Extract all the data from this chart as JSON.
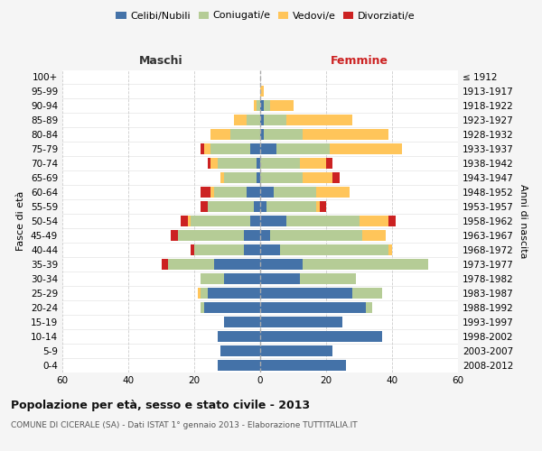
{
  "age_groups": [
    "100+",
    "95-99",
    "90-94",
    "85-89",
    "80-84",
    "75-79",
    "70-74",
    "65-69",
    "60-64",
    "55-59",
    "50-54",
    "45-49",
    "40-44",
    "35-39",
    "30-34",
    "25-29",
    "20-24",
    "15-19",
    "10-14",
    "5-9",
    "0-4"
  ],
  "birth_years": [
    "≤ 1912",
    "1913-1917",
    "1918-1922",
    "1923-1927",
    "1928-1932",
    "1933-1937",
    "1938-1942",
    "1943-1947",
    "1948-1952",
    "1953-1957",
    "1958-1962",
    "1963-1967",
    "1968-1972",
    "1973-1977",
    "1978-1982",
    "1983-1987",
    "1988-1992",
    "1993-1997",
    "1998-2002",
    "2003-2007",
    "2008-2012"
  ],
  "maschi": {
    "celibi": [
      0,
      0,
      0,
      0,
      0,
      3,
      1,
      1,
      4,
      2,
      3,
      5,
      5,
      14,
      11,
      16,
      17,
      11,
      13,
      12,
      13
    ],
    "coniugati": [
      0,
      0,
      1,
      4,
      9,
      12,
      12,
      10,
      10,
      14,
      18,
      20,
      15,
      14,
      7,
      2,
      1,
      0,
      0,
      0,
      0
    ],
    "vedovi": [
      0,
      0,
      1,
      4,
      6,
      2,
      2,
      1,
      1,
      0,
      1,
      0,
      0,
      0,
      0,
      1,
      0,
      0,
      0,
      0,
      0
    ],
    "divorziati": [
      0,
      0,
      0,
      0,
      0,
      1,
      1,
      0,
      3,
      2,
      2,
      2,
      1,
      2,
      0,
      0,
      0,
      0,
      0,
      0,
      0
    ]
  },
  "femmine": {
    "nubili": [
      0,
      0,
      1,
      1,
      1,
      5,
      0,
      0,
      4,
      2,
      8,
      3,
      6,
      13,
      12,
      28,
      32,
      25,
      37,
      22,
      26
    ],
    "coniugate": [
      0,
      0,
      2,
      7,
      12,
      16,
      12,
      13,
      13,
      15,
      22,
      28,
      33,
      38,
      17,
      9,
      2,
      0,
      0,
      0,
      0
    ],
    "vedove": [
      0,
      1,
      7,
      20,
      26,
      22,
      8,
      9,
      10,
      1,
      9,
      7,
      1,
      0,
      0,
      0,
      0,
      0,
      0,
      0,
      0
    ],
    "divorziate": [
      0,
      0,
      0,
      0,
      0,
      0,
      2,
      2,
      0,
      2,
      2,
      0,
      0,
      0,
      0,
      0,
      0,
      0,
      0,
      0,
      0
    ]
  },
  "colors": {
    "celibi": "#4472a8",
    "coniugati": "#b5cc96",
    "vedovi": "#ffc55a",
    "divorziati": "#cc2222"
  },
  "legend_labels": [
    "Celibi/Nubili",
    "Coniugati/e",
    "Vedovi/e",
    "Divorziati/e"
  ],
  "title1": "Popolazione per età, sesso e stato civile - 2013",
  "title2": "COMUNE DI CICERALE (SA) - Dati ISTAT 1° gennaio 2013 - Elaborazione TUTTITALIA.IT",
  "xlabel_left": "Maschi",
  "xlabel_right": "Femmine",
  "ylabel_left": "Fasce di età",
  "ylabel_right": "Anni di nascita",
  "xlim": 60,
  "background_color": "#f5f5f5",
  "plot_bg_color": "#ffffff"
}
